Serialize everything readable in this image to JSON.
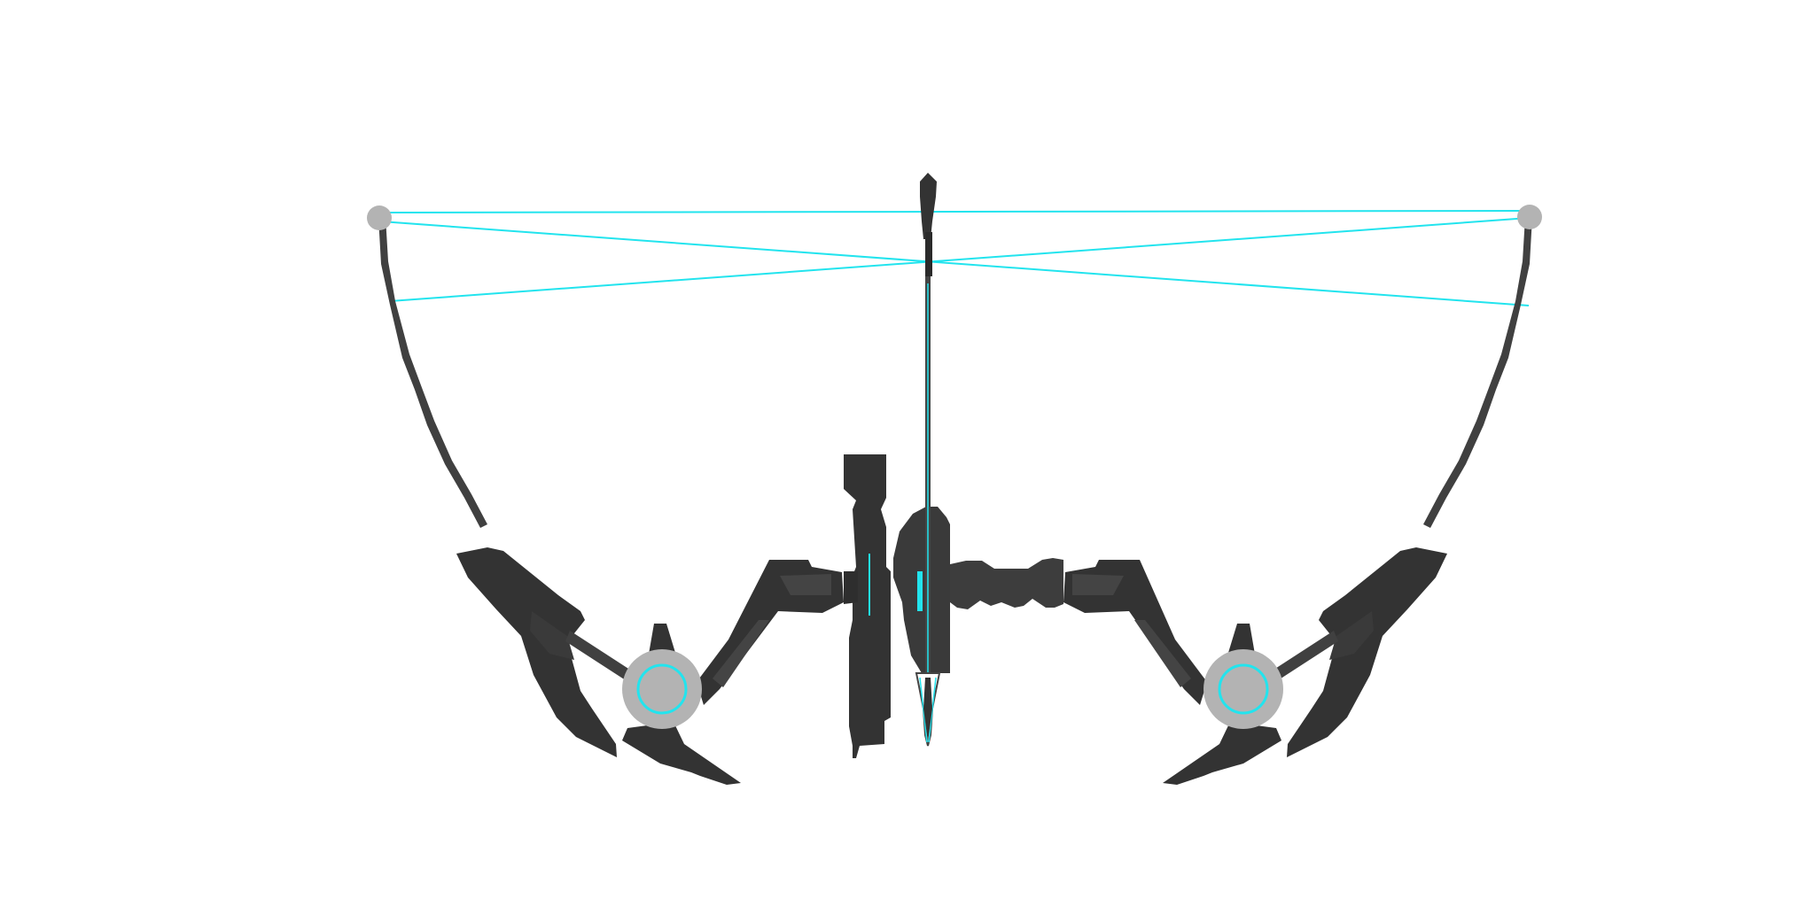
{
  "scene": {
    "subject": "compound-bow-icon",
    "colors": {
      "background": "#ffffff",
      "body_dark": "#333333",
      "body_mid": "#3d3d3d",
      "body_light": "#474747",
      "limb": "#404040",
      "cam": "#b3b3b3",
      "accent": "#22e4ee"
    }
  }
}
